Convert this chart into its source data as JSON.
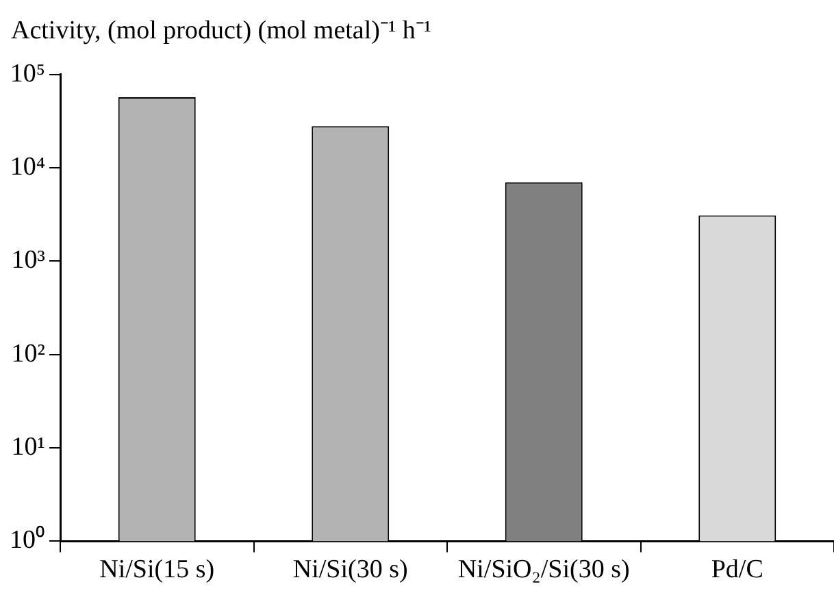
{
  "chart_data": {
    "type": "bar",
    "ylabel": "Activity, (mol product) (mol metal)⁻¹ h⁻¹",
    "categories": [
      "Ni/Si(15 s)",
      "Ni/Si(30 s)",
      "Ni/SiO₂/Si(30 s)",
      "Pd/C"
    ],
    "values": [
      57000,
      28000,
      7000,
      3100
    ],
    "colors": [
      "#b3b3b3",
      "#b3b3b3",
      "#808080",
      "#d9d9d9"
    ],
    "log": "y",
    "ylim": [
      1,
      100000
    ],
    "yticks": [
      {
        "value": 1,
        "label": "10⁰"
      },
      {
        "value": 10,
        "label": "10¹"
      },
      {
        "value": 100,
        "label": "10²"
      },
      {
        "value": 1000,
        "label": "10³"
      },
      {
        "value": 10000,
        "label": "10⁴"
      },
      {
        "value": 100000,
        "label": "10⁵"
      }
    ]
  }
}
